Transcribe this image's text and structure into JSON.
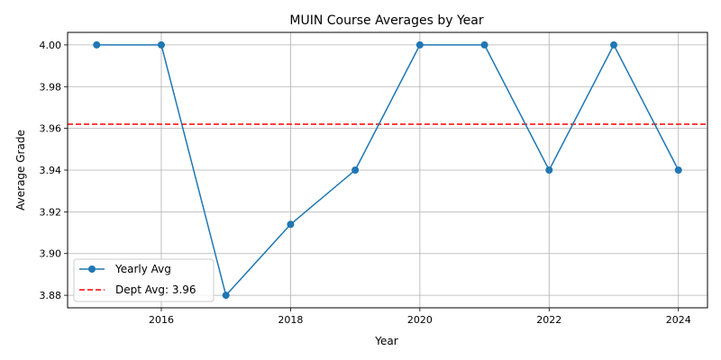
{
  "chart_data": {
    "type": "line",
    "title": "MUIN Course Averages by Year",
    "xlabel": "Year",
    "ylabel": "Average Grade",
    "x": [
      2015,
      2016,
      2017,
      2018,
      2019,
      2020,
      2021,
      2022,
      2023,
      2024
    ],
    "series": [
      {
        "name": "Yearly Avg",
        "color": "#1f77b4",
        "marker": "circle",
        "values": [
          4.0,
          4.0,
          3.88,
          3.914,
          3.94,
          4.0,
          4.0,
          3.94,
          4.0,
          3.94
        ]
      }
    ],
    "reference_line": {
      "name": "Dept Avg: 3.96",
      "value": 3.962,
      "color": "#ff0000",
      "style": "dashed"
    },
    "xlim": [
      2014.55,
      2024.45
    ],
    "ylim": [
      3.874,
      4.006
    ],
    "xticks": [
      2016,
      2018,
      2020,
      2022,
      2024
    ],
    "yticks": [
      3.88,
      3.9,
      3.92,
      3.94,
      3.96,
      3.98,
      4.0
    ],
    "ytick_labels": [
      "3.88",
      "3.90",
      "3.92",
      "3.94",
      "3.96",
      "3.98",
      "4.00"
    ],
    "grid": true,
    "legend_position": "lower-left"
  }
}
